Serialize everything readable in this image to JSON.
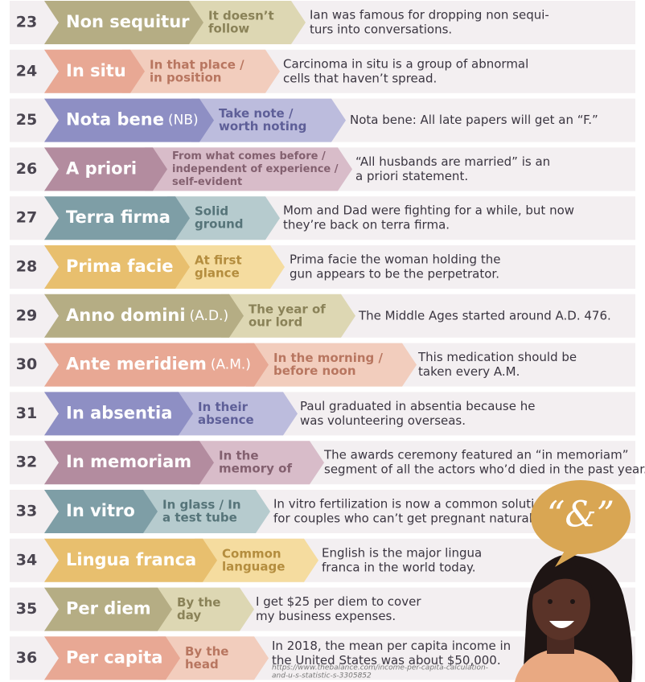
{
  "rows": [
    {
      "number": 23,
      "term": "Non sequitur",
      "meaning": [
        "It doesn’t",
        "follow"
      ],
      "example": [
        "Ian was famous for dropping non sequi-",
        "turs into conversations."
      ]
    },
    {
      "number": 24,
      "term": "In situ",
      "meaning": [
        "In that place /",
        "in position"
      ],
      "example": [
        "Carcinoma in situ is a group of abnormal",
        "cells that haven’t spread."
      ]
    },
    {
      "number": 25,
      "term": "Nota bene",
      "abbr": "(NB)",
      "meaning": [
        "Take note /",
        "worth noting"
      ],
      "example": [
        "Nota bene: All late papers will get an “F.”"
      ]
    },
    {
      "number": 26,
      "term": "A priori",
      "meaning": [
        "From what comes before /",
        "independent of experience /",
        "self-evident"
      ],
      "example": [
        "“All husbands are married” is an",
        "a priori statement."
      ]
    },
    {
      "number": 27,
      "term": "Terra firma",
      "meaning": [
        "Solid",
        "ground"
      ],
      "example": [
        "Mom and Dad were fighting for a while, but now",
        "they’re back on terra firma."
      ]
    },
    {
      "number": 28,
      "term": "Prima facie",
      "meaning": [
        "At first",
        "glance"
      ],
      "example": [
        "Prima facie the woman holding the",
        "gun appears to be the perpetrator."
      ]
    },
    {
      "number": 29,
      "term": "Anno domini",
      "abbr": "(A.D.)",
      "meaning": [
        "The year of",
        "our lord"
      ],
      "example": [
        "The Middle Ages started around A.D. 476."
      ]
    },
    {
      "number": 30,
      "term": "Ante meridiem",
      "abbr": "(A.M.)",
      "meaning": [
        "In the morning /",
        "before noon"
      ],
      "example": [
        "This medication should be",
        "taken every A.M."
      ]
    },
    {
      "number": 31,
      "term": "In absentia",
      "meaning": [
        "In their",
        "absence"
      ],
      "example": [
        "Paul graduated in absentia because he",
        "was volunteering overseas."
      ]
    },
    {
      "number": 32,
      "term": "In memoriam",
      "meaning": [
        "In the",
        "memory of"
      ],
      "example": [
        "The awards ceremony featured an “in memoriam”",
        "segment of all the actors who’d died in the past year."
      ]
    },
    {
      "number": 33,
      "term": "In vitro",
      "meaning": [
        "In glass / In",
        "a test tube"
      ],
      "example": [
        "In vitro fertilization is now a common solution",
        "for couples who can’t get pregnant naturally."
      ]
    },
    {
      "number": 34,
      "term": "Lingua franca",
      "meaning": [
        "Common",
        "language"
      ],
      "example": [
        "English is the major lingua",
        "franca in the world today."
      ]
    },
    {
      "number": 35,
      "term": "Per diem",
      "meaning": [
        "By the",
        "day"
      ],
      "example": [
        "I get $25 per diem to cover",
        "my business expenses."
      ]
    },
    {
      "number": 36,
      "term": "Per capita",
      "meaning": [
        "By the",
        "head"
      ],
      "example": [
        "In 2018, the mean per capita income in",
        "the United States was about $50,000."
      ]
    }
  ],
  "bubble": "“&”",
  "source": [
    "https://www.thebalance.com/income-per-capita-calculation-",
    "and-u-s-statistic-s-3305852"
  ]
}
